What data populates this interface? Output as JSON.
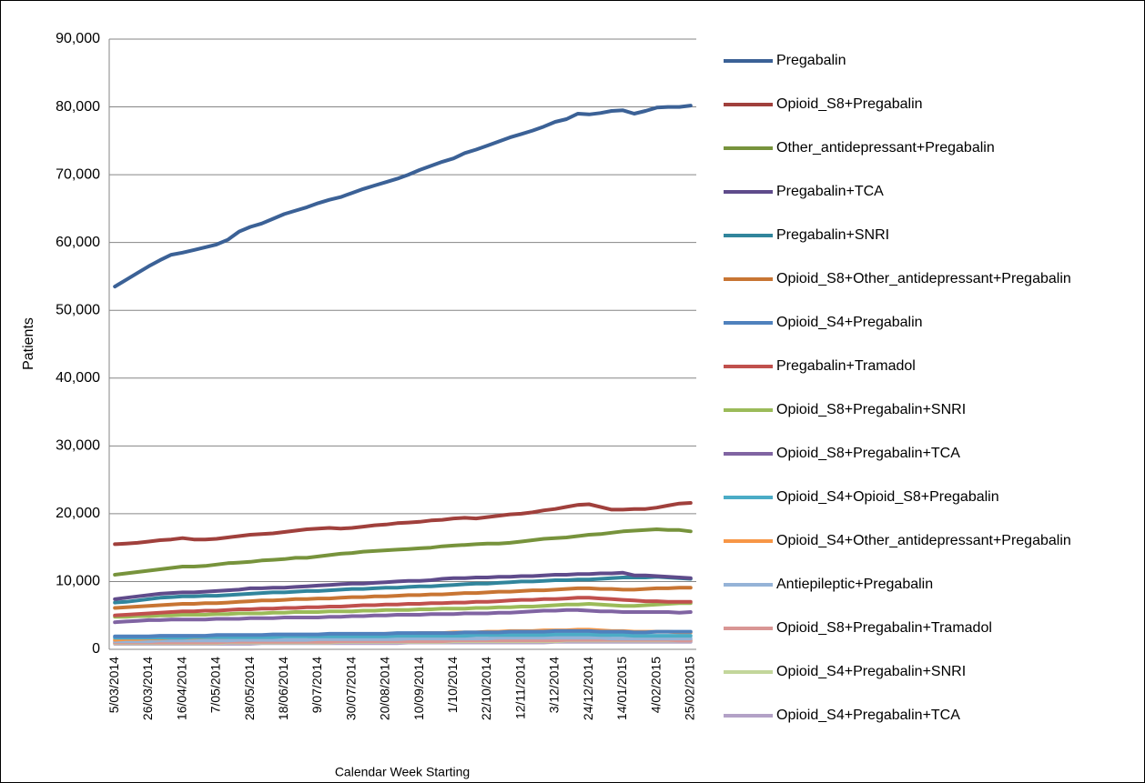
{
  "chart_data": {
    "type": "line",
    "y_label": "Patients",
    "x_label": "Calendar Week Starting",
    "grid": true,
    "legend": "right",
    "ylim": [
      0,
      90000
    ],
    "yticks": [
      0,
      {
        "value": 10000,
        "label": "10,000"
      },
      {
        "value": 20000,
        "label": "20,000"
      },
      {
        "value": 30000,
        "label": "30,000"
      },
      {
        "value": 40000,
        "label": "40,000"
      },
      {
        "value": 50000,
        "label": "50,000"
      },
      {
        "value": 60000,
        "label": "60,000"
      },
      {
        "value": 70000,
        "label": "70,000"
      },
      {
        "value": 80000,
        "label": "80,000"
      },
      {
        "value": 90000,
        "label": "90,000"
      }
    ],
    "categories": [
      "5/03/2014",
      null,
      null,
      "26/03/2014",
      null,
      null,
      "16/04/2014",
      null,
      null,
      "7/05/2014",
      null,
      null,
      "28/05/2014",
      null,
      null,
      "18/06/2014",
      null,
      null,
      "9/07/2014",
      null,
      null,
      "30/07/2014",
      null,
      null,
      "20/08/2014",
      null,
      null,
      "10/09/2014",
      null,
      null,
      "1/10/2014",
      null,
      null,
      "22/10/2014",
      null,
      null,
      "12/11/2014",
      null,
      null,
      "3/12/2014",
      null,
      null,
      "24/12/2014",
      null,
      null,
      "14/01/2015",
      null,
      null,
      "4/02/2015",
      null,
      null,
      "25/02/2015"
    ],
    "series": [
      {
        "name": "Pregabalin",
        "color": "#3b6196",
        "values": [
          53500,
          54500,
          55500,
          56500,
          57400,
          58200,
          58500,
          58900,
          59300,
          59700,
          60400,
          61600,
          62300,
          62800,
          63500,
          64200,
          64700,
          65200,
          65800,
          66300,
          66700,
          67300,
          67900,
          68400,
          68900,
          69400,
          70000,
          70700,
          71300,
          71900,
          72400,
          73200,
          73700,
          74300,
          74900,
          75500,
          76000,
          76500,
          77100,
          77800,
          78200,
          79000,
          78900,
          79100,
          79400,
          79500,
          79000,
          79400,
          79900,
          80000,
          80000,
          80200
        ]
      },
      {
        "name": "Opioid_S8+Pregabalin",
        "color": "#a0403c",
        "values": [
          15500,
          15600,
          15700,
          15900,
          16100,
          16200,
          16400,
          16200,
          16200,
          16300,
          16500,
          16700,
          16900,
          17000,
          17100,
          17300,
          17500,
          17700,
          17800,
          17900,
          17800,
          17900,
          18100,
          18300,
          18400,
          18600,
          18700,
          18800,
          19000,
          19100,
          19300,
          19400,
          19300,
          19500,
          19700,
          19900,
          20000,
          20200,
          20500,
          20700,
          21000,
          21300,
          21400,
          21000,
          20600,
          20600,
          20700,
          20700,
          20900,
          21200,
          21500,
          21600
        ]
      },
      {
        "name": "Other_antidepressant+Pregabalin",
        "color": "#77933c",
        "values": [
          11000,
          11200,
          11400,
          11600,
          11800,
          12000,
          12200,
          12200,
          12300,
          12500,
          12700,
          12800,
          12900,
          13100,
          13200,
          13300,
          13500,
          13500,
          13700,
          13900,
          14100,
          14200,
          14400,
          14500,
          14600,
          14700,
          14800,
          14900,
          15000,
          15200,
          15300,
          15400,
          15500,
          15600,
          15600,
          15700,
          15900,
          16100,
          16300,
          16400,
          16500,
          16700,
          16900,
          17000,
          17200,
          17400,
          17500,
          17600,
          17700,
          17600,
          17600,
          17400
        ]
      },
      {
        "name": "Pregabalin+TCA",
        "color": "#5f4b8b",
        "values": [
          7400,
          7600,
          7800,
          8000,
          8200,
          8300,
          8400,
          8400,
          8500,
          8600,
          8700,
          8800,
          9000,
          9000,
          9100,
          9100,
          9200,
          9300,
          9400,
          9500,
          9600,
          9700,
          9700,
          9800,
          9900,
          10000,
          10100,
          10100,
          10200,
          10400,
          10500,
          10500,
          10600,
          10600,
          10700,
          10700,
          10800,
          10800,
          10900,
          11000,
          11000,
          11100,
          11100,
          11200,
          11200,
          11300,
          10900,
          10900,
          10800,
          10700,
          10600,
          10500
        ]
      },
      {
        "name": "Pregabalin+SNRI",
        "color": "#31859c",
        "values": [
          6900,
          7000,
          7200,
          7400,
          7600,
          7700,
          7800,
          7800,
          7900,
          7900,
          8000,
          8100,
          8200,
          8300,
          8400,
          8400,
          8500,
          8600,
          8600,
          8700,
          8800,
          8900,
          8900,
          9000,
          9100,
          9100,
          9200,
          9300,
          9300,
          9400,
          9500,
          9600,
          9700,
          9700,
          9800,
          9900,
          10000,
          10000,
          10100,
          10200,
          10200,
          10300,
          10300,
          10400,
          10500,
          10600,
          10600,
          10600,
          10700,
          10600,
          10500,
          10400
        ]
      },
      {
        "name": "Opioid_S8+Other_antidepressant+Pregabalin",
        "color": "#c87533",
        "values": [
          6100,
          6200,
          6300,
          6400,
          6500,
          6600,
          6700,
          6700,
          6800,
          6800,
          6900,
          7000,
          7100,
          7200,
          7200,
          7300,
          7400,
          7400,
          7500,
          7500,
          7600,
          7700,
          7700,
          7800,
          7800,
          7900,
          8000,
          8000,
          8100,
          8100,
          8200,
          8300,
          8300,
          8400,
          8500,
          8500,
          8600,
          8700,
          8700,
          8800,
          8900,
          9000,
          9000,
          8900,
          8900,
          8800,
          8800,
          8900,
          9000,
          9000,
          9100,
          9100
        ]
      },
      {
        "name": "Opioid_S4+Pregabalin",
        "color": "#4f81bd",
        "values": [
          1900,
          1900,
          1900,
          1900,
          2000,
          2000,
          2000,
          2000,
          2000,
          2100,
          2100,
          2100,
          2100,
          2100,
          2200,
          2200,
          2200,
          2200,
          2200,
          2300,
          2300,
          2300,
          2300,
          2300,
          2300,
          2400,
          2400,
          2400,
          2400,
          2400,
          2400,
          2500,
          2500,
          2500,
          2500,
          2600,
          2600,
          2600,
          2600,
          2700,
          2700,
          2700,
          2700,
          2600,
          2600,
          2600,
          2500,
          2500,
          2600,
          2600,
          2600,
          2600
        ]
      },
      {
        "name": "Pregabalin+Tramadol",
        "color": "#c0504d",
        "values": [
          5000,
          5100,
          5200,
          5300,
          5400,
          5500,
          5600,
          5600,
          5700,
          5700,
          5800,
          5900,
          5900,
          6000,
          6000,
          6100,
          6100,
          6200,
          6200,
          6300,
          6300,
          6400,
          6500,
          6500,
          6600,
          6600,
          6700,
          6700,
          6800,
          6800,
          6900,
          6900,
          7000,
          7000,
          7100,
          7200,
          7300,
          7300,
          7400,
          7400,
          7500,
          7600,
          7600,
          7500,
          7400,
          7300,
          7200,
          7100,
          7100,
          7000,
          7000,
          7000
        ]
      },
      {
        "name": "Opioid_S8+Pregabalin+SNRI",
        "color": "#9bbb59",
        "values": [
          4800,
          4800,
          4900,
          4900,
          5000,
          5000,
          5100,
          5100,
          5100,
          5200,
          5200,
          5300,
          5300,
          5300,
          5400,
          5400,
          5500,
          5500,
          5500,
          5600,
          5600,
          5600,
          5700,
          5700,
          5800,
          5800,
          5800,
          5900,
          5900,
          6000,
          6000,
          6000,
          6100,
          6100,
          6200,
          6200,
          6300,
          6300,
          6400,
          6500,
          6600,
          6600,
          6700,
          6600,
          6500,
          6400,
          6400,
          6500,
          6600,
          6700,
          6800,
          6800
        ]
      },
      {
        "name": "Opioid_S8+Pregabalin+TCA",
        "color": "#8064a2",
        "values": [
          4000,
          4100,
          4200,
          4300,
          4300,
          4400,
          4400,
          4400,
          4400,
          4500,
          4500,
          4500,
          4600,
          4600,
          4600,
          4700,
          4700,
          4700,
          4700,
          4800,
          4800,
          4900,
          4900,
          5000,
          5000,
          5100,
          5100,
          5100,
          5200,
          5200,
          5200,
          5300,
          5300,
          5300,
          5400,
          5400,
          5500,
          5600,
          5700,
          5700,
          5800,
          5800,
          5700,
          5600,
          5600,
          5500,
          5500,
          5500,
          5500,
          5500,
          5400,
          5500
        ]
      },
      {
        "name": "Opioid_S4+Opioid_S8+Pregabalin",
        "color": "#4bacc6",
        "values": [
          1700,
          1700,
          1700,
          1700,
          1700,
          1700,
          1700,
          1800,
          1800,
          1800,
          1800,
          1800,
          1800,
          1800,
          1800,
          1900,
          1900,
          1900,
          1900,
          1900,
          1900,
          1900,
          1900,
          1900,
          1900,
          2000,
          2000,
          2000,
          2000,
          2000,
          2000,
          2000,
          2100,
          2100,
          2100,
          2100,
          2100,
          2100,
          2100,
          2200,
          2200,
          2200,
          2200,
          2100,
          2100,
          2100,
          2000,
          2000,
          2000,
          2000,
          2000,
          2000
        ]
      },
      {
        "name": "Opioid_S4+Other_antidepressant+Pregabalin",
        "color": "#f79646",
        "values": [
          1400,
          1500,
          1500,
          1600,
          1600,
          1700,
          1700,
          1700,
          1800,
          1800,
          1800,
          1900,
          1900,
          1900,
          2000,
          2000,
          2000,
          2100,
          2100,
          2100,
          2100,
          2200,
          2200,
          2200,
          2300,
          2300,
          2300,
          2400,
          2400,
          2400,
          2500,
          2500,
          2500,
          2600,
          2600,
          2700,
          2700,
          2700,
          2800,
          2800,
          2800,
          2900,
          2900,
          2800,
          2700,
          2700,
          2600,
          2600,
          2600,
          2600,
          2500,
          2500
        ]
      },
      {
        "name": "Antiepileptic+Pregabalin",
        "color": "#95b3d7",
        "values": [
          1200,
          1200,
          1200,
          1200,
          1300,
          1300,
          1300,
          1300,
          1300,
          1300,
          1300,
          1400,
          1400,
          1400,
          1400,
          1400,
          1400,
          1400,
          1500,
          1500,
          1500,
          1500,
          1500,
          1500,
          1500,
          1500,
          1600,
          1600,
          1600,
          1600,
          1600,
          1600,
          1600,
          1600,
          1700,
          1700,
          1700,
          1700,
          1700,
          1700,
          1700,
          1700,
          1700,
          1700,
          1600,
          1600,
          1600,
          1600,
          1600,
          1600,
          1600,
          1600
        ]
      },
      {
        "name": "Opioid_S8+Pregabalin+Tramadol",
        "color": "#d99694",
        "values": [
          1000,
          1000,
          1000,
          1000,
          1000,
          1000,
          1000,
          1000,
          1000,
          1000,
          1100,
          1100,
          1100,
          1100,
          1100,
          1100,
          1100,
          1100,
          1100,
          1100,
          1200,
          1200,
          1200,
          1200,
          1200,
          1200,
          1200,
          1200,
          1200,
          1200,
          1300,
          1300,
          1300,
          1300,
          1300,
          1300,
          1300,
          1300,
          1300,
          1300,
          1400,
          1400,
          1400,
          1400,
          1400,
          1400,
          1400,
          1400,
          1400,
          1400,
          1300,
          1300
        ]
      },
      {
        "name": "Opioid_S4+Pregabalin+SNRI",
        "color": "#c3d69b",
        "values": [
          900,
          900,
          900,
          900,
          900,
          900,
          900,
          900,
          900,
          900,
          1000,
          1000,
          1000,
          1000,
          1000,
          1000,
          1000,
          1000,
          1000,
          1000,
          1100,
          1100,
          1100,
          1100,
          1100,
          1100,
          1100,
          1100,
          1100,
          1100,
          1200,
          1200,
          1200,
          1200,
          1200,
          1200,
          1200,
          1200,
          1200,
          1200,
          1300,
          1300,
          1300,
          1300,
          1300,
          1300,
          1300,
          1300,
          1300,
          1300,
          1300,
          1300
        ]
      },
      {
        "name": "Opioid_S4+Pregabalin+TCA",
        "color": "#b3a2c7",
        "values": [
          800,
          800,
          800,
          800,
          800,
          800,
          800,
          800,
          800,
          800,
          800,
          800,
          800,
          900,
          900,
          900,
          900,
          900,
          900,
          900,
          900,
          900,
          900,
          900,
          900,
          900,
          1000,
          1000,
          1000,
          1000,
          1000,
          1000,
          1000,
          1000,
          1000,
          1000,
          1000,
          1000,
          1000,
          1100,
          1100,
          1100,
          1100,
          1100,
          1100,
          1100,
          1100,
          1100,
          1100,
          1100,
          1100,
          1100
        ]
      }
    ]
  }
}
